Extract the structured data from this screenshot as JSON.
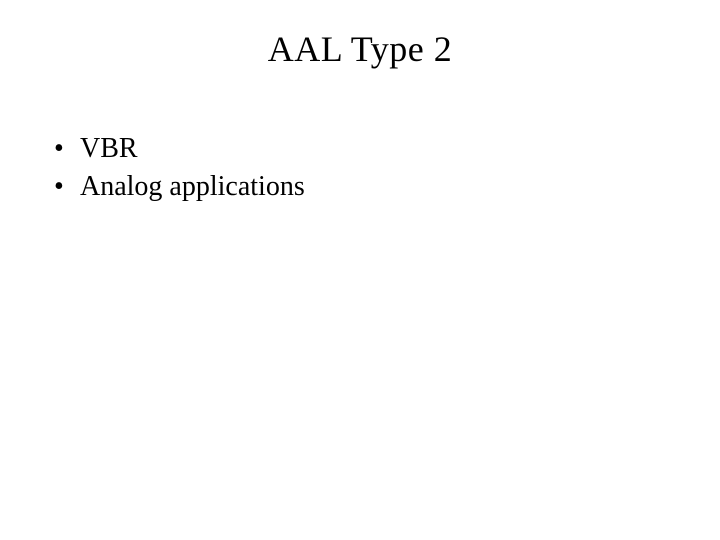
{
  "slide": {
    "title": "AAL Type 2",
    "bullets": [
      "VBR",
      "Analog applications"
    ],
    "bullet_glyph": "•"
  },
  "style": {
    "background_color": "#ffffff",
    "text_color": "#000000",
    "title_fontsize_pt": 27,
    "body_fontsize_pt": 21,
    "font_family": "Times New Roman"
  }
}
